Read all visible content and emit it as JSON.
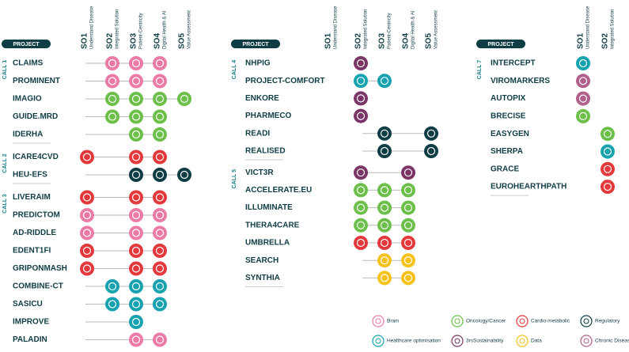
{
  "panels": [
    {
      "header": "PROJECT",
      "columns": [
        {
          "code": "SO1",
          "label": "Understand Disease"
        },
        {
          "code": "SO2",
          "label": "Integrated Solution"
        },
        {
          "code": "SO3",
          "label": "Patient-Centricity"
        },
        {
          "code": "SO4",
          "label": "Digital Health & AI"
        },
        {
          "code": "SO5",
          "label": "Value Assessment"
        }
      ],
      "calls": [
        {
          "label": "CALL 1",
          "projects": [
            {
              "name": "CLAIMS",
              "marks": [
                [
                  1,
                  0
                ],
                [
                  2,
                  0
                ],
                [
                  3,
                  0
                ]
              ]
            },
            {
              "name": "PROMINENT",
              "marks": [
                [
                  1,
                  0
                ],
                [
                  2,
                  0
                ],
                [
                  3,
                  0
                ]
              ]
            },
            {
              "name": "IMAGIO",
              "marks": [
                [
                  1,
                  1
                ],
                [
                  2,
                  1
                ],
                [
                  3,
                  1
                ],
                [
                  4,
                  1
                ]
              ]
            },
            {
              "name": "GUIDE.MRD",
              "marks": [
                [
                  1,
                  1
                ],
                [
                  2,
                  1
                ],
                [
                  3,
                  1
                ]
              ]
            },
            {
              "name": "IDERHA",
              "marks": [
                [
                  2,
                  1
                ],
                [
                  3,
                  1
                ]
              ]
            }
          ]
        },
        {
          "label": "CALL 2",
          "projects": [
            {
              "name": "ICARE4CVD",
              "marks": [
                [
                  0,
                  2
                ],
                [
                  2,
                  2
                ],
                [
                  3,
                  2
                ]
              ]
            },
            {
              "name": "HEU-EFS",
              "marks": [
                [
                  2,
                  3
                ],
                [
                  3,
                  3
                ],
                [
                  4,
                  3
                ]
              ]
            }
          ]
        },
        {
          "label": "CALL 3",
          "projects": [
            {
              "name": "LIVERAIM",
              "marks": [
                [
                  0,
                  2
                ],
                [
                  2,
                  2
                ],
                [
                  3,
                  2
                ]
              ]
            },
            {
              "name": "PREDICTOM",
              "marks": [
                [
                  0,
                  0
                ],
                [
                  2,
                  0
                ],
                [
                  3,
                  0
                ]
              ]
            },
            {
              "name": "AD-RIDDLE",
              "marks": [
                [
                  0,
                  0
                ],
                [
                  2,
                  0
                ],
                [
                  3,
                  0
                ]
              ]
            },
            {
              "name": "EDENT1FI",
              "marks": [
                [
                  0,
                  2
                ],
                [
                  2,
                  2
                ],
                [
                  3,
                  2
                ]
              ]
            },
            {
              "name": "GRIPONMASH",
              "marks": [
                [
                  0,
                  2
                ],
                [
                  2,
                  2
                ],
                [
                  3,
                  2
                ]
              ]
            },
            {
              "name": "COMBINE-CT",
              "marks": [
                [
                  1,
                  4
                ],
                [
                  2,
                  4
                ],
                [
                  3,
                  4
                ]
              ]
            },
            {
              "name": "SASICU",
              "marks": [
                [
                  1,
                  4
                ],
                [
                  2,
                  4
                ],
                [
                  3,
                  4
                ]
              ]
            },
            {
              "name": "IMPROVE",
              "marks": [
                [
                  2,
                  4
                ]
              ]
            },
            {
              "name": "PALADIN",
              "marks": [
                [
                  2,
                  0
                ],
                [
                  3,
                  0
                ]
              ]
            }
          ]
        }
      ]
    },
    {
      "header": "PROJECT",
      "columns": [
        {
          "code": "SO1",
          "label": "Understand Disease"
        },
        {
          "code": "SO2",
          "label": "Integrated Solution"
        },
        {
          "code": "SO3",
          "label": "Patient-Centricity"
        },
        {
          "code": "SO4",
          "label": "Digital Health & AI"
        },
        {
          "code": "SO5",
          "label": "Value Assessment"
        }
      ],
      "calls": [
        {
          "label": "CALL 4",
          "projects": [
            {
              "name": "NHPIG",
              "marks": [
                [
                  1,
                  5
                ]
              ]
            },
            {
              "name": "PROJECT-COMFORT",
              "marks": [
                [
                  1,
                  4
                ],
                [
                  2,
                  4
                ]
              ]
            },
            {
              "name": "ENKORE",
              "marks": [
                [
                  1,
                  5
                ]
              ]
            },
            {
              "name": "PHARMECO",
              "marks": [
                [
                  1,
                  5
                ]
              ]
            },
            {
              "name": "READI",
              "marks": [
                [
                  2,
                  3
                ],
                [
                  4,
                  3
                ]
              ]
            },
            {
              "name": "REALISED",
              "marks": [
                [
                  2,
                  3
                ],
                [
                  4,
                  3
                ]
              ]
            }
          ]
        },
        {
          "label": "CALL 5",
          "projects": [
            {
              "name": "VICT3R",
              "marks": [
                [
                  1,
                  5
                ],
                [
                  3,
                  5
                ]
              ]
            },
            {
              "name": "ACCELERATE.EU",
              "marks": [
                [
                  1,
                  1
                ],
                [
                  2,
                  1
                ],
                [
                  3,
                  1
                ]
              ]
            },
            {
              "name": "ILLUMINATE",
              "marks": [
                [
                  1,
                  1
                ],
                [
                  2,
                  1
                ],
                [
                  3,
                  1
                ]
              ]
            },
            {
              "name": "THERA4CARE",
              "marks": [
                [
                  1,
                  1
                ],
                [
                  2,
                  1
                ],
                [
                  3,
                  1
                ]
              ]
            },
            {
              "name": "UMBRELLA",
              "marks": [
                [
                  1,
                  2
                ],
                [
                  2,
                  2
                ],
                [
                  3,
                  2
                ]
              ]
            },
            {
              "name": "SEARCH",
              "marks": [
                [
                  2,
                  6
                ],
                [
                  3,
                  6
                ]
              ]
            },
            {
              "name": "SYNTHIA",
              "marks": [
                [
                  2,
                  6
                ],
                [
                  3,
                  6
                ]
              ]
            }
          ]
        }
      ]
    },
    {
      "header": "PROJECT",
      "columns": [
        {
          "code": "SO1",
          "label": "Understand Disease"
        },
        {
          "code": "SO2",
          "label": "Integrated Solution"
        }
      ],
      "calls": [
        {
          "label": "CALL 7",
          "projects": [
            {
              "name": "INTERCEPT",
              "marks": [
                [
                  0,
                  4
                ]
              ]
            },
            {
              "name": "VIROMARKERS",
              "marks": [
                [
                  0,
                  7
                ]
              ]
            },
            {
              "name": "AUTOPIX",
              "marks": [
                [
                  0,
                  7
                ]
              ]
            },
            {
              "name": "BRECISE",
              "marks": [
                [
                  0,
                  1
                ]
              ]
            },
            {
              "name": "EASYGEN",
              "marks": [
                [
                  1,
                  1
                ]
              ]
            },
            {
              "name": "SHERPA",
              "marks": [
                [
                  1,
                  4
                ]
              ]
            },
            {
              "name": "GRACE",
              "marks": [
                [
                  1,
                  2
                ]
              ]
            },
            {
              "name": "EUROHEARTHPATH",
              "marks": [
                [
                  1,
                  2
                ]
              ]
            }
          ]
        }
      ]
    }
  ],
  "legend": [
    {
      "label": "Brain",
      "color": "#ec7aa8"
    },
    {
      "label": "Oncology/Cancer",
      "color": "#6cc04a"
    },
    {
      "label": "Cardio-metabolic",
      "color": "#e4393c"
    },
    {
      "label": "Regulatory",
      "color": "#0f3d45"
    },
    {
      "label": "Healthcare optimisation",
      "color": "#17a2b0"
    },
    {
      "label": "3rsSustainability",
      "color": "#7a3566"
    },
    {
      "label": "Data",
      "color": "#f5c21a"
    },
    {
      "label": "Chronic Disease",
      "color": "#b0608a"
    }
  ]
}
